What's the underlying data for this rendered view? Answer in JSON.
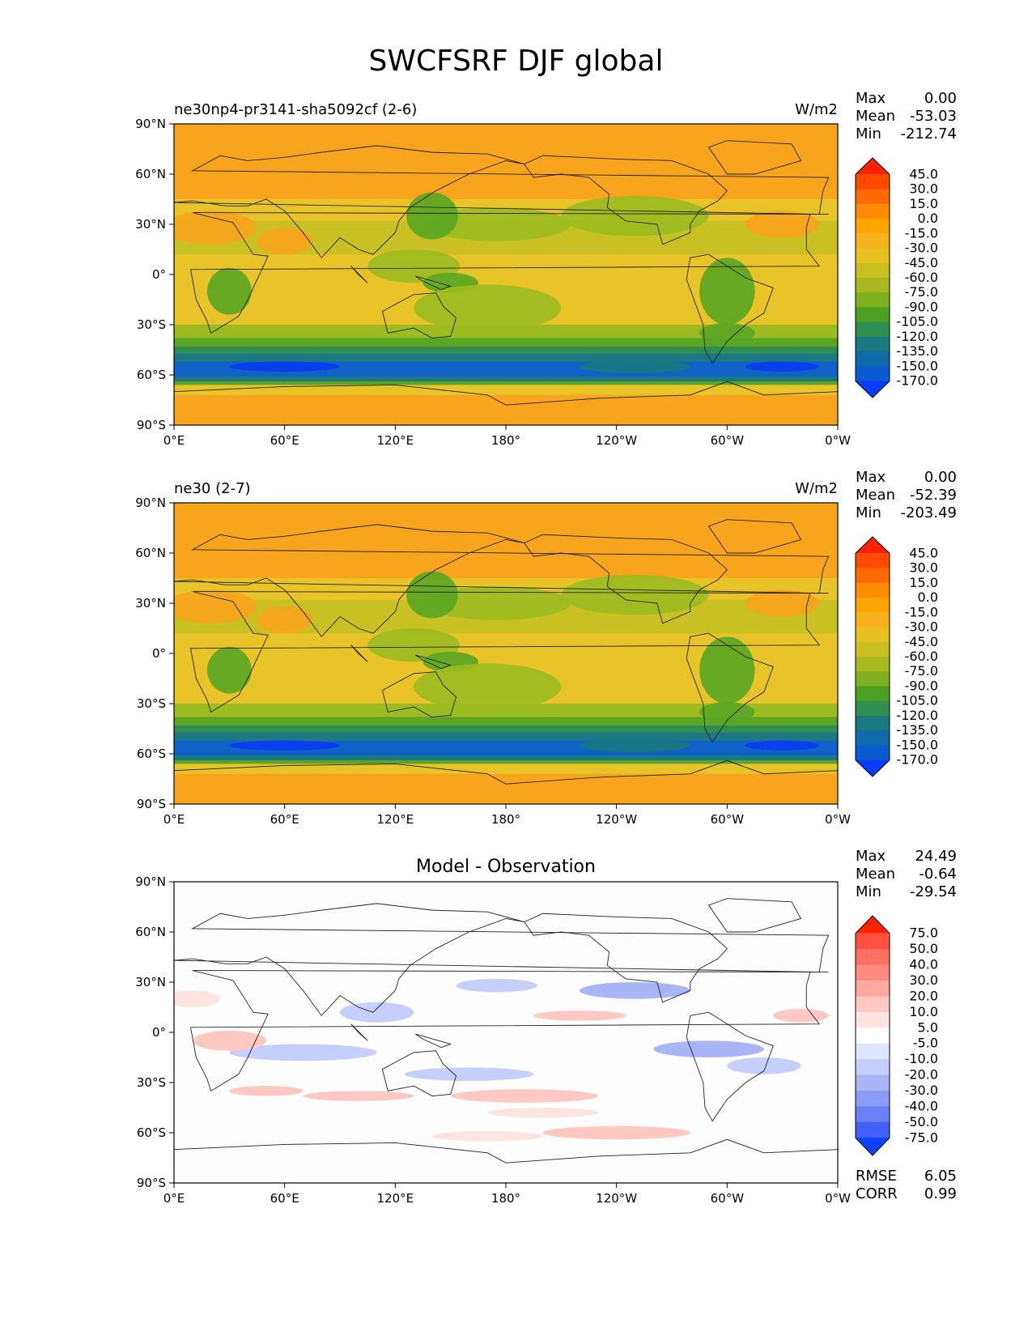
{
  "figure_title": "SWCFSRF DJF global",
  "chart_data": [
    {
      "type": "heatmap",
      "title_left": "ne30np4-pr3141-sha5092cf (2-6)",
      "title_center": "",
      "units": "W/m2",
      "xticks": [
        "0°E",
        "60°E",
        "120°E",
        "180°",
        "120°W",
        "60°W",
        "0°W"
      ],
      "yticks": [
        "90°N",
        "60°N",
        "30°N",
        "0°",
        "30°S",
        "60°S",
        "90°S"
      ],
      "xlim": [
        0,
        360
      ],
      "ylim": [
        -90,
        90
      ],
      "stats": [
        {
          "label": "Max",
          "value": "0.00"
        },
        {
          "label": "Mean",
          "value": "-53.03"
        },
        {
          "label": "Min",
          "value": "-212.74"
        }
      ],
      "colorbar_levels": [
        "45.0",
        "30.0",
        "15.0",
        "0.0",
        "-15.0",
        "-30.0",
        "-45.0",
        "-60.0",
        "-75.0",
        "-90.0",
        "-105.0",
        "-120.0",
        "-135.0",
        "-150.0",
        "-170.0"
      ],
      "colorbar_colors": [
        "#ff2200",
        "#ff4a00",
        "#ff6a00",
        "#ff8c00",
        "#ffa500",
        "#f5b21c",
        "#e8c020",
        "#c8c020",
        "#a8b820",
        "#7fb020",
        "#4aa020",
        "#2f8f50",
        "#1a7a80",
        "#0f6aa8",
        "#0a5ad0",
        "#0a3cff"
      ],
      "field": "model"
    },
    {
      "type": "heatmap",
      "title_left": "ne30 (2-7)",
      "title_center": "",
      "units": "W/m2",
      "xticks": [
        "0°E",
        "60°E",
        "120°E",
        "180°",
        "120°W",
        "60°W",
        "0°W"
      ],
      "yticks": [
        "90°N",
        "60°N",
        "30°N",
        "0°",
        "30°S",
        "60°S",
        "90°S"
      ],
      "xlim": [
        0,
        360
      ],
      "ylim": [
        -90,
        90
      ],
      "stats": [
        {
          "label": "Max",
          "value": "0.00"
        },
        {
          "label": "Mean",
          "value": "-52.39"
        },
        {
          "label": "Min",
          "value": "-203.49"
        }
      ],
      "colorbar_levels": [
        "45.0",
        "30.0",
        "15.0",
        "0.0",
        "-15.0",
        "-30.0",
        "-45.0",
        "-60.0",
        "-75.0",
        "-90.0",
        "-105.0",
        "-120.0",
        "-135.0",
        "-150.0",
        "-170.0"
      ],
      "colorbar_colors": [
        "#ff2200",
        "#ff4a00",
        "#ff6a00",
        "#ff8c00",
        "#ffa500",
        "#f5b21c",
        "#e8c020",
        "#c8c020",
        "#a8b820",
        "#7fb020",
        "#4aa020",
        "#2f8f50",
        "#1a7a80",
        "#0f6aa8",
        "#0a5ad0",
        "#0a3cff"
      ],
      "field": "model"
    },
    {
      "type": "heatmap",
      "title_left": "",
      "title_center": "Model - Observation",
      "units": "",
      "xticks": [
        "0°E",
        "60°E",
        "120°E",
        "180°",
        "120°W",
        "60°W",
        "0°W"
      ],
      "yticks": [
        "90°N",
        "60°N",
        "30°N",
        "0°",
        "30°S",
        "60°S",
        "90°S"
      ],
      "xlim": [
        0,
        360
      ],
      "ylim": [
        -90,
        90
      ],
      "stats": [
        {
          "label": "Max",
          "value": "24.49"
        },
        {
          "label": "Mean",
          "value": "-0.64"
        },
        {
          "label": "Min",
          "value": "-29.54"
        }
      ],
      "extra_stats": [
        {
          "label": "RMSE",
          "value": "6.05"
        },
        {
          "label": "CORR",
          "value": "0.99"
        }
      ],
      "colorbar_levels": [
        "75.0",
        "50.0",
        "40.0",
        "30.0",
        "20.0",
        "10.0",
        "5.0",
        "-5.0",
        "-10.0",
        "-20.0",
        "-30.0",
        "-40.0",
        "-50.0",
        "-75.0"
      ],
      "colorbar_colors": [
        "#ff2200",
        "#ff5040",
        "#ff7060",
        "#ff8a80",
        "#ffa8a0",
        "#ffc8c0",
        "#ffe4e0",
        "#ffffff",
        "#e0e6ff",
        "#c4cffc",
        "#a8b6f8",
        "#8c9cf4",
        "#6a80f4",
        "#4060f8",
        "#1040ff"
      ],
      "field": "diff"
    }
  ]
}
